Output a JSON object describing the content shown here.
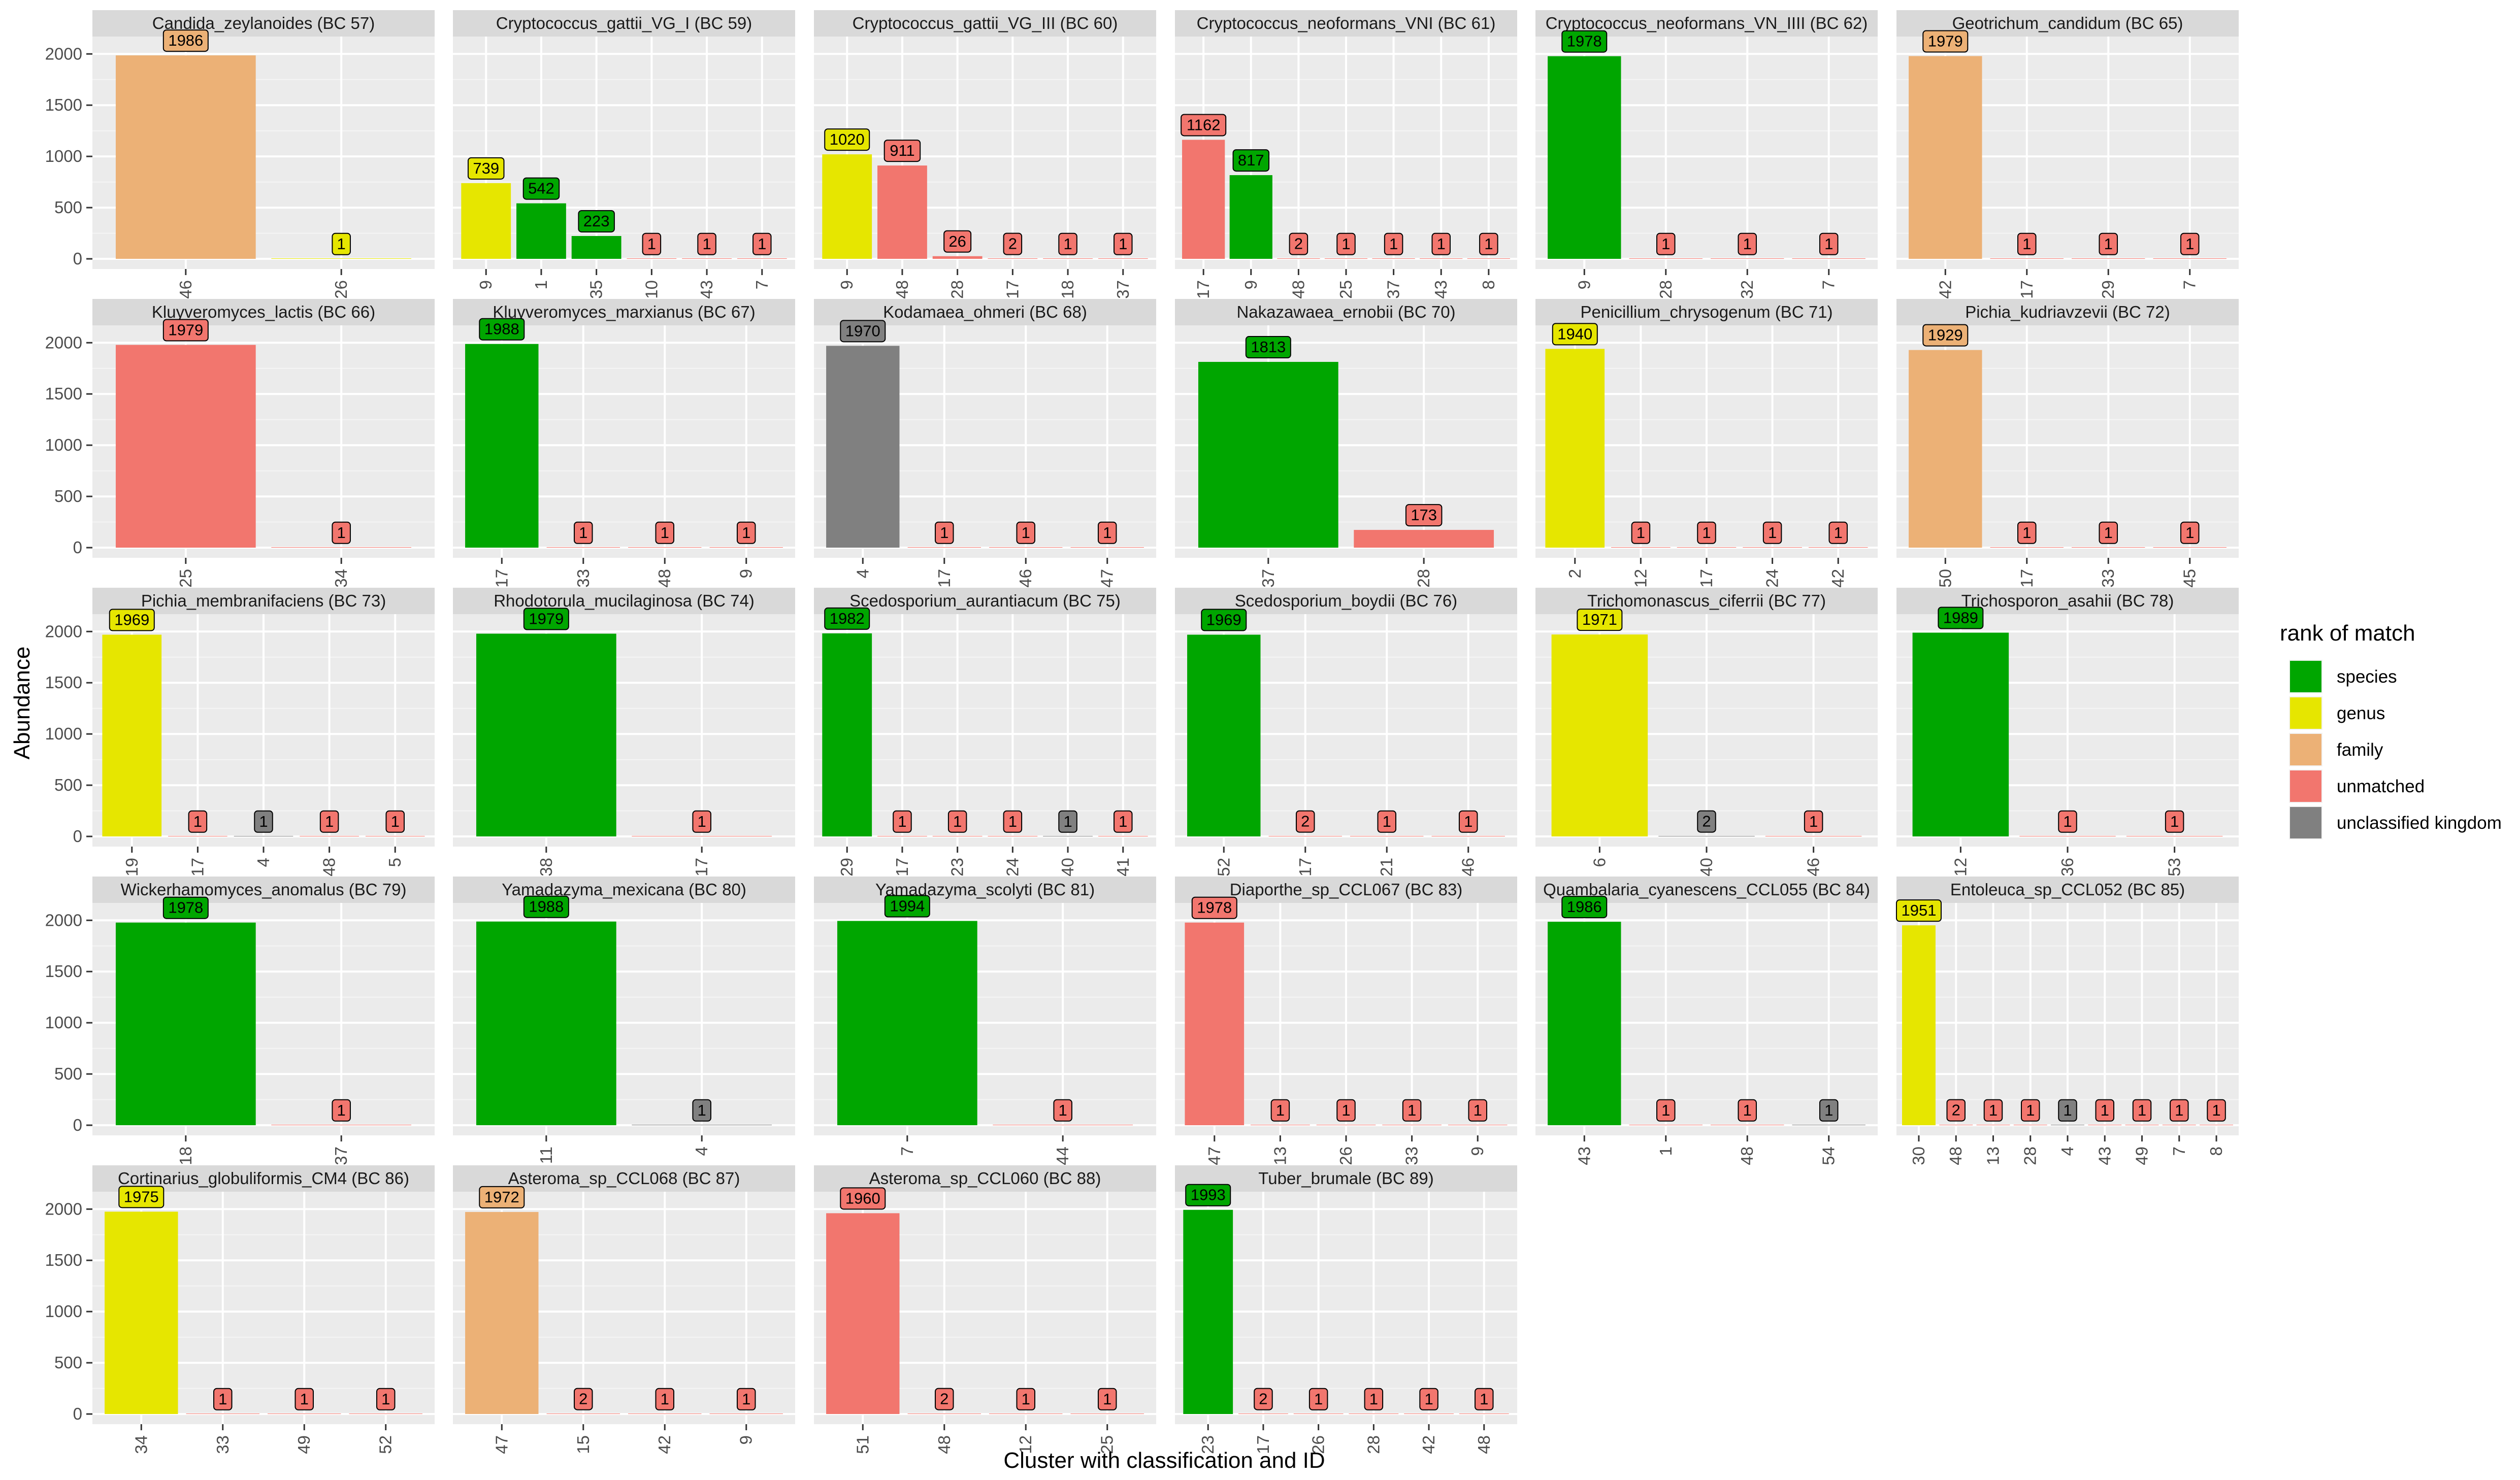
{
  "chart_data": {
    "type": "bar",
    "xlabel": "Cluster with classification and ID",
    "ylabel": "Abundance",
    "ylim": [
      0,
      2150
    ],
    "yticks": [
      0,
      500,
      1000,
      1500,
      2000
    ],
    "grid": true,
    "legend": {
      "title": "rank of match",
      "placement": "right",
      "items": [
        {
          "label": "species",
          "color": "#00A600"
        },
        {
          "label": "genus",
          "color": "#E6E600"
        },
        {
          "label": "family",
          "color": "#ECB176"
        },
        {
          "label": "unmatched",
          "color": "#F2766E"
        },
        {
          "label": "unclassified kingdom",
          "color": "#808080"
        }
      ]
    },
    "panels": [
      {
        "title": "Candida_zeylanoides (BC 57)",
        "bars": [
          {
            "x": "46",
            "value": 1986,
            "rank": "family"
          },
          {
            "x": "26",
            "value": 1,
            "rank": "genus"
          }
        ]
      },
      {
        "title": "Cryptococcus_gattii_VG_I (BC 59)",
        "bars": [
          {
            "x": "9",
            "value": 739,
            "rank": "genus"
          },
          {
            "x": "1",
            "value": 542,
            "rank": "species"
          },
          {
            "x": "35",
            "value": 223,
            "rank": "species"
          },
          {
            "x": "10",
            "value": 1,
            "rank": "unmatched"
          },
          {
            "x": "43",
            "value": 1,
            "rank": "unmatched"
          },
          {
            "x": "7",
            "value": 1,
            "rank": "unmatched"
          }
        ]
      },
      {
        "title": "Cryptococcus_gattii_VG_III (BC 60)",
        "bars": [
          {
            "x": "9",
            "value": 1020,
            "rank": "genus"
          },
          {
            "x": "48",
            "value": 911,
            "rank": "unmatched"
          },
          {
            "x": "28",
            "value": 26,
            "rank": "unmatched"
          },
          {
            "x": "17",
            "value": 2,
            "rank": "unmatched"
          },
          {
            "x": "18",
            "value": 1,
            "rank": "unmatched"
          },
          {
            "x": "37",
            "value": 1,
            "rank": "unmatched"
          }
        ]
      },
      {
        "title": "Cryptococcus_neoformans_VNI (BC 61)",
        "bars": [
          {
            "x": "17",
            "value": 1162,
            "rank": "unmatched"
          },
          {
            "x": "9",
            "value": 817,
            "rank": "species"
          },
          {
            "x": "48",
            "value": 2,
            "rank": "unmatched"
          },
          {
            "x": "25",
            "value": 1,
            "rank": "unmatched"
          },
          {
            "x": "37",
            "value": 1,
            "rank": "unmatched"
          },
          {
            "x": "43",
            "value": 1,
            "rank": "unmatched"
          },
          {
            "x": "8",
            "value": 1,
            "rank": "unmatched"
          }
        ]
      },
      {
        "title": "Cryptococcus_neoformans_VN_IIII (BC 62)",
        "bars": [
          {
            "x": "9",
            "value": 1978,
            "rank": "species"
          },
          {
            "x": "28",
            "value": 1,
            "rank": "unmatched"
          },
          {
            "x": "32",
            "value": 1,
            "rank": "unmatched"
          },
          {
            "x": "7",
            "value": 1,
            "rank": "unmatched"
          }
        ]
      },
      {
        "title": "Geotrichum_candidum (BC 65)",
        "bars": [
          {
            "x": "42",
            "value": 1979,
            "rank": "family"
          },
          {
            "x": "17",
            "value": 1,
            "rank": "unmatched"
          },
          {
            "x": "29",
            "value": 1,
            "rank": "unmatched"
          },
          {
            "x": "7",
            "value": 1,
            "rank": "unmatched"
          }
        ]
      },
      {
        "title": "Kluyveromyces_lactis (BC 66)",
        "bars": [
          {
            "x": "25",
            "value": 1979,
            "rank": "unmatched"
          },
          {
            "x": "34",
            "value": 1,
            "rank": "unmatched"
          }
        ]
      },
      {
        "title": "Kluyveromyces_marxianus (BC 67)",
        "bars": [
          {
            "x": "17",
            "value": 1988,
            "rank": "species"
          },
          {
            "x": "33",
            "value": 1,
            "rank": "unmatched"
          },
          {
            "x": "48",
            "value": 1,
            "rank": "unmatched"
          },
          {
            "x": "9",
            "value": 1,
            "rank": "unmatched"
          }
        ]
      },
      {
        "title": "Kodamaea_ohmeri (BC 68)",
        "bars": [
          {
            "x": "4",
            "value": 1970,
            "rank": "unclassified kingdom"
          },
          {
            "x": "17",
            "value": 1,
            "rank": "unmatched"
          },
          {
            "x": "46",
            "value": 1,
            "rank": "unmatched"
          },
          {
            "x": "47",
            "value": 1,
            "rank": "unmatched"
          }
        ]
      },
      {
        "title": "Nakazawaea_ernobii (BC 70)",
        "bars": [
          {
            "x": "37",
            "value": 1813,
            "rank": "species"
          },
          {
            "x": "28",
            "value": 173,
            "rank": "unmatched"
          }
        ]
      },
      {
        "title": "Penicillium_chrysogenum (BC 71)",
        "bars": [
          {
            "x": "2",
            "value": 1940,
            "rank": "genus"
          },
          {
            "x": "12",
            "value": 1,
            "rank": "unmatched"
          },
          {
            "x": "17",
            "value": 1,
            "rank": "unmatched"
          },
          {
            "x": "24",
            "value": 1,
            "rank": "unmatched"
          },
          {
            "x": "42",
            "value": 1,
            "rank": "unmatched"
          }
        ]
      },
      {
        "title": "Pichia_kudriavzevii (BC 72)",
        "bars": [
          {
            "x": "50",
            "value": 1929,
            "rank": "family"
          },
          {
            "x": "17",
            "value": 1,
            "rank": "unmatched"
          },
          {
            "x": "33",
            "value": 1,
            "rank": "unmatched"
          },
          {
            "x": "45",
            "value": 1,
            "rank": "unmatched"
          }
        ]
      },
      {
        "title": "Pichia_membranifaciens (BC 73)",
        "bars": [
          {
            "x": "19",
            "value": 1969,
            "rank": "genus"
          },
          {
            "x": "17",
            "value": 1,
            "rank": "unmatched"
          },
          {
            "x": "4",
            "value": 1,
            "rank": "unclassified kingdom"
          },
          {
            "x": "48",
            "value": 1,
            "rank": "unmatched"
          },
          {
            "x": "5",
            "value": 1,
            "rank": "unmatched"
          }
        ]
      },
      {
        "title": "Rhodotorula_mucilaginosa (BC 74)",
        "bars": [
          {
            "x": "38",
            "value": 1979,
            "rank": "species"
          },
          {
            "x": "17",
            "value": 1,
            "rank": "unmatched"
          }
        ]
      },
      {
        "title": "Scedosporium_aurantiacum (BC 75)",
        "bars": [
          {
            "x": "29",
            "value": 1982,
            "rank": "species"
          },
          {
            "x": "17",
            "value": 1,
            "rank": "unmatched"
          },
          {
            "x": "23",
            "value": 1,
            "rank": "unmatched"
          },
          {
            "x": "24",
            "value": 1,
            "rank": "unmatched"
          },
          {
            "x": "40",
            "value": 1,
            "rank": "unclassified kingdom"
          },
          {
            "x": "41",
            "value": 1,
            "rank": "unmatched"
          }
        ]
      },
      {
        "title": "Scedosporium_boydii (BC 76)",
        "bars": [
          {
            "x": "52",
            "value": 1969,
            "rank": "species"
          },
          {
            "x": "17",
            "value": 2,
            "rank": "unmatched"
          },
          {
            "x": "21",
            "value": 1,
            "rank": "unmatched"
          },
          {
            "x": "46",
            "value": 1,
            "rank": "unmatched"
          }
        ]
      },
      {
        "title": "Trichomonascus_ciferrii (BC 77)",
        "bars": [
          {
            "x": "6",
            "value": 1971,
            "rank": "genus"
          },
          {
            "x": "40",
            "value": 2,
            "rank": "unclassified kingdom"
          },
          {
            "x": "46",
            "value": 1,
            "rank": "unmatched"
          }
        ]
      },
      {
        "title": "Trichosporon_asahii (BC 78)",
        "bars": [
          {
            "x": "12",
            "value": 1989,
            "rank": "species"
          },
          {
            "x": "36",
            "value": 1,
            "rank": "unmatched"
          },
          {
            "x": "53",
            "value": 1,
            "rank": "unmatched"
          }
        ]
      },
      {
        "title": "Wickerhamomyces_anomalus (BC 79)",
        "bars": [
          {
            "x": "18",
            "value": 1978,
            "rank": "species"
          },
          {
            "x": "37",
            "value": 1,
            "rank": "unmatched"
          }
        ]
      },
      {
        "title": "Yamadazyma_mexicana (BC 80)",
        "bars": [
          {
            "x": "11",
            "value": 1988,
            "rank": "species"
          },
          {
            "x": "4",
            "value": 1,
            "rank": "unclassified kingdom"
          }
        ]
      },
      {
        "title": "Yamadazyma_scolyti (BC 81)",
        "bars": [
          {
            "x": "7",
            "value": 1994,
            "rank": "species"
          },
          {
            "x": "44",
            "value": 1,
            "rank": "unmatched"
          }
        ]
      },
      {
        "title": "Diaporthe_sp_CCL067 (BC 83)",
        "bars": [
          {
            "x": "47",
            "value": 1978,
            "rank": "unmatched"
          },
          {
            "x": "13",
            "value": 1,
            "rank": "unmatched"
          },
          {
            "x": "26",
            "value": 1,
            "rank": "unmatched"
          },
          {
            "x": "33",
            "value": 1,
            "rank": "unmatched"
          },
          {
            "x": "9",
            "value": 1,
            "rank": "unmatched"
          }
        ]
      },
      {
        "title": "Quambalaria_cyanescens_CCL055 (BC 84)",
        "bars": [
          {
            "x": "43",
            "value": 1986,
            "rank": "species"
          },
          {
            "x": "1",
            "value": 1,
            "rank": "unmatched"
          },
          {
            "x": "48",
            "value": 1,
            "rank": "unmatched"
          },
          {
            "x": "54",
            "value": 1,
            "rank": "unclassified kingdom"
          }
        ]
      },
      {
        "title": "Entoleuca_sp_CCL052 (BC 85)",
        "bars": [
          {
            "x": "30",
            "value": 1951,
            "rank": "genus"
          },
          {
            "x": "48",
            "value": 2,
            "rank": "unmatched"
          },
          {
            "x": "13",
            "value": 1,
            "rank": "unmatched"
          },
          {
            "x": "28",
            "value": 1,
            "rank": "unmatched"
          },
          {
            "x": "4",
            "value": 1,
            "rank": "unclassified kingdom"
          },
          {
            "x": "43",
            "value": 1,
            "rank": "unmatched"
          },
          {
            "x": "49",
            "value": 1,
            "rank": "unmatched"
          },
          {
            "x": "7",
            "value": 1,
            "rank": "unmatched"
          },
          {
            "x": "8",
            "value": 1,
            "rank": "unmatched"
          }
        ]
      },
      {
        "title": "Cortinarius_globuliformis_CM4 (BC 86)",
        "bars": [
          {
            "x": "34",
            "value": 1975,
            "rank": "genus"
          },
          {
            "x": "33",
            "value": 1,
            "rank": "unmatched"
          },
          {
            "x": "49",
            "value": 1,
            "rank": "unmatched"
          },
          {
            "x": "52",
            "value": 1,
            "rank": "unmatched"
          }
        ]
      },
      {
        "title": "Asteroma_sp_CCL068 (BC 87)",
        "bars": [
          {
            "x": "47",
            "value": 1972,
            "rank": "family"
          },
          {
            "x": "15",
            "value": 2,
            "rank": "unmatched"
          },
          {
            "x": "42",
            "value": 1,
            "rank": "unmatched"
          },
          {
            "x": "9",
            "value": 1,
            "rank": "unmatched"
          }
        ]
      },
      {
        "title": "Asteroma_sp_CCL060 (BC 88)",
        "bars": [
          {
            "x": "51",
            "value": 1960,
            "rank": "unmatched"
          },
          {
            "x": "48",
            "value": 2,
            "rank": "unmatched"
          },
          {
            "x": "12",
            "value": 1,
            "rank": "unmatched"
          },
          {
            "x": "25",
            "value": 1,
            "rank": "unmatched"
          }
        ]
      },
      {
        "title": "Tuber_brumale (BC 89)",
        "bars": [
          {
            "x": "23",
            "value": 1993,
            "rank": "species"
          },
          {
            "x": "17",
            "value": 2,
            "rank": "unmatched"
          },
          {
            "x": "26",
            "value": 1,
            "rank": "unmatched"
          },
          {
            "x": "28",
            "value": 1,
            "rank": "unmatched"
          },
          {
            "x": "42",
            "value": 1,
            "rank": "unmatched"
          },
          {
            "x": "48",
            "value": 1,
            "rank": "unmatched"
          }
        ]
      }
    ]
  }
}
